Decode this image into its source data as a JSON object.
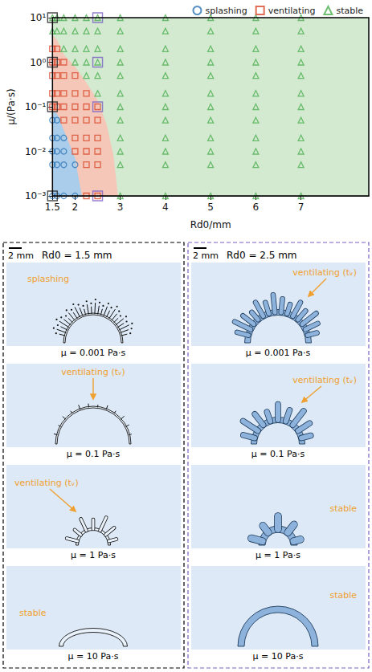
{
  "chart_data": {
    "type": "scatter",
    "xlabel": "Rd0/mm",
    "ylabel": "μ/(Pa·s)",
    "log": "y",
    "grid": false,
    "legend": "top",
    "xlim": [
      1.5,
      8.5
    ],
    "xticks": [
      1.5,
      2,
      3,
      4,
      5,
      6,
      7
    ],
    "ylim": [
      0.001,
      10
    ],
    "yticks": [
      {
        "value": 0.001,
        "label": "10⁻³"
      },
      {
        "value": 0.01,
        "label": "10⁻²"
      },
      {
        "value": 0.1,
        "label": "10⁻¹"
      },
      {
        "value": 1,
        "label": "10⁰"
      },
      {
        "value": 10,
        "label": "10¹"
      }
    ],
    "regions": [
      {
        "color": "#d3ead0",
        "x": [
          1.5,
          8.5,
          8.5,
          1.5
        ],
        "y": [
          0.001,
          0.001,
          10,
          10
        ]
      },
      {
        "color": "#f4c7b8",
        "x": [
          1.5,
          1.6,
          1.75,
          2.0,
          2.25,
          2.5,
          2.7,
          2.85,
          2.95,
          1.5
        ],
        "y": [
          4,
          3.2,
          1.5,
          0.8,
          0.35,
          0.14,
          0.04,
          0.008,
          0.001,
          0.001
        ]
      },
      {
        "color": "#a9cdea",
        "x": [
          1.5,
          1.6,
          1.75,
          2.0,
          2.15,
          1.5
        ],
        "y": [
          0.08,
          0.07,
          0.03,
          0.007,
          0.001,
          0.001
        ]
      }
    ],
    "series": [
      {
        "name": "splashing",
        "color": "#2e75b6",
        "marker": "circle",
        "x": [
          1.5,
          1.5,
          1.5,
          1.5,
          1.5,
          1.6,
          1.6,
          1.6,
          1.6,
          1.6,
          1.75,
          1.75,
          1.75,
          1.75,
          2,
          2
        ],
        "values": [
          0.001,
          0.005,
          0.01,
          0.02,
          0.05,
          0.001,
          0.005,
          0.01,
          0.02,
          0.05,
          0.001,
          0.005,
          0.01,
          0.02,
          0.001,
          0.005
        ]
      },
      {
        "name": "ventilating",
        "color": "#d9472b",
        "marker": "square",
        "x": [
          1.5,
          1.5,
          1.5,
          1.5,
          1.5,
          1.6,
          1.6,
          1.6,
          1.6,
          1.6,
          1.75,
          1.75,
          1.75,
          1.75,
          1.75,
          2,
          2,
          2,
          2,
          2,
          2,
          2.25,
          2.25,
          2.25,
          2.25,
          2.25,
          2.25,
          2.25,
          2.5,
          2.5,
          2.5,
          2.5,
          2.5,
          2.5
        ],
        "values": [
          0.1,
          0.2,
          0.5,
          1,
          2,
          0.1,
          0.2,
          0.5,
          1,
          2,
          0.05,
          0.1,
          0.2,
          0.5,
          1,
          0.01,
          0.02,
          0.05,
          0.1,
          0.2,
          0.5,
          0.001,
          0.005,
          0.01,
          0.02,
          0.05,
          0.1,
          0.2,
          0.001,
          0.005,
          0.01,
          0.02,
          0.05,
          0.1
        ]
      },
      {
        "name": "stable",
        "color": "#4caf50",
        "marker": "triangle",
        "x": [
          1.5,
          1.5,
          1.6,
          1.6,
          1.75,
          1.75,
          1.75,
          2,
          2,
          2,
          2,
          2.25,
          2.25,
          2.25,
          2.25,
          2.25,
          2.5,
          2.5,
          2.5,
          2.5,
          2.5,
          2.5,
          3,
          3,
          3,
          3,
          3,
          3,
          3,
          3,
          3,
          3,
          3,
          3,
          4,
          4,
          4,
          4,
          4,
          4,
          4,
          4,
          4,
          4,
          4,
          4,
          5,
          5,
          5,
          5,
          5,
          5,
          5,
          5,
          5,
          5,
          5,
          5,
          6,
          6,
          6,
          6,
          6,
          6,
          6,
          6,
          6,
          6,
          6,
          6,
          7,
          7,
          7,
          7,
          7,
          7,
          7,
          7,
          7,
          7,
          7,
          7
        ],
        "values": [
          5,
          10,
          5,
          10,
          2,
          5,
          10,
          1,
          2,
          5,
          10,
          0.5,
          1,
          2,
          5,
          10,
          0.2,
          0.5,
          1,
          2,
          5,
          10,
          0.001,
          0.005,
          0.01,
          0.02,
          0.05,
          0.1,
          0.2,
          0.5,
          1,
          2,
          5,
          10,
          0.001,
          0.005,
          0.01,
          0.02,
          0.05,
          0.1,
          0.2,
          0.5,
          1,
          2,
          5,
          10,
          0.001,
          0.005,
          0.01,
          0.02,
          0.05,
          0.1,
          0.2,
          0.5,
          1,
          2,
          5,
          10,
          0.001,
          0.005,
          0.01,
          0.02,
          0.05,
          0.1,
          0.2,
          0.5,
          1,
          2,
          5,
          10,
          0.001,
          0.005,
          0.01,
          0.02,
          0.05,
          0.1,
          0.2,
          0.5,
          1,
          2,
          5,
          10
        ]
      }
    ],
    "highlights": [
      {
        "color": "#222222",
        "marker": "square",
        "x": [
          1.5,
          1.5,
          1.5,
          1.5
        ],
        "values": [
          0.001,
          0.1,
          1,
          10
        ]
      },
      {
        "color": "#7b5fc2",
        "marker": "square",
        "x": [
          2.5,
          2.5,
          2.5,
          2.5
        ],
        "values": [
          0.001,
          0.1,
          1,
          10
        ]
      }
    ]
  },
  "regime_color": "#f0a030",
  "panels": [
    {
      "scale_bar": "2 mm",
      "title": "Rd0 = 1.5 mm",
      "color": "#000000",
      "cells": [
        {
          "label": "μ = 0.001 Pa·s",
          "regime": "splashing"
        },
        {
          "label": "μ = 0.1 Pa·s",
          "regime": "ventilating (tᵥ)"
        },
        {
          "label": "μ = 1 Pa·s",
          "regime": "ventilating (tᵥ)"
        },
        {
          "label": "μ = 10 Pa·s",
          "regime": "stable"
        }
      ]
    },
    {
      "scale_bar": "2 mm",
      "title": "Rd0 = 2.5 mm",
      "color": "#7b5fc2",
      "cells": [
        {
          "label": "μ = 0.001 Pa·s",
          "regime": "ventilating (tᵥ)"
        },
        {
          "label": "μ = 0.1 Pa·s",
          "regime": "ventilating (tᵥ)"
        },
        {
          "label": "μ = 1 Pa·s",
          "regime": "stable"
        },
        {
          "label": "μ = 10 Pa·s",
          "regime": "stable"
        }
      ]
    }
  ]
}
